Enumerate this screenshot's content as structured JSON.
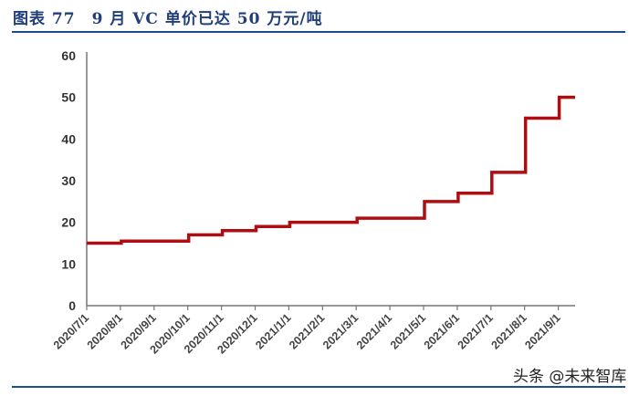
{
  "title": "图表 77　9 月 VC 单价已达 50 万元/吨",
  "watermark": "头条 @未来智库",
  "chart_data": {
    "type": "line",
    "step": true,
    "title": "",
    "xlabel": "",
    "ylabel": "",
    "ylim": [
      0,
      60
    ],
    "yticks": [
      0,
      10,
      20,
      30,
      40,
      50,
      60
    ],
    "grid": false,
    "line_color": "#b00d12",
    "categories": [
      "2020/7/1",
      "2020/8/1",
      "2020/9/1",
      "2020/10/1",
      "2020/11/1",
      "2020/12/1",
      "2021/1/1",
      "2021/2/1",
      "2021/3/1",
      "2021/4/1",
      "2021/5/1",
      "2021/6/1",
      "2021/7/1",
      "2021/8/1",
      "2021/9/1"
    ],
    "values": [
      15,
      15.5,
      15.5,
      17,
      18,
      19,
      20,
      20,
      21,
      21,
      25,
      27,
      32,
      45,
      50
    ]
  }
}
